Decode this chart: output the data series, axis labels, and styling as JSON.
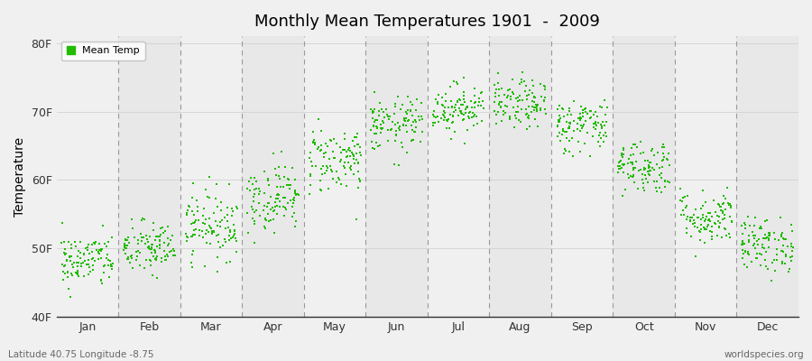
{
  "title": "Monthly Mean Temperatures 1901  -  2009",
  "ylabel": "Temperature",
  "lat_lon_label": "Latitude 40.75 Longitude -8.75",
  "watermark": "worldspecies.org",
  "legend_label": "Mean Temp",
  "marker_color": "#22bb00",
  "background_color": "#f0f0f0",
  "band_color_odd": "#e8e8e8",
  "band_color_even": "#f0f0f0",
  "ylim": [
    40,
    81
  ],
  "yticks": [
    40,
    50,
    60,
    70,
    80
  ],
  "ytick_labels": [
    "40F",
    "50F",
    "60F",
    "70F",
    "80F"
  ],
  "months": [
    "Jan",
    "Feb",
    "Mar",
    "Apr",
    "May",
    "Jun",
    "Jul",
    "Aug",
    "Sep",
    "Oct",
    "Nov",
    "Dec"
  ],
  "month_means_F": [
    48.2,
    50.0,
    53.5,
    57.5,
    63.0,
    68.0,
    70.5,
    71.0,
    68.0,
    62.0,
    54.5,
    50.5
  ],
  "month_stds_F": [
    2.0,
    2.0,
    2.5,
    2.5,
    2.5,
    2.0,
    1.8,
    1.8,
    2.0,
    2.0,
    2.0,
    2.0
  ],
  "n_years": 109,
  "seed": 42,
  "dline_color": "#999999",
  "spine_color": "#333333",
  "tick_label_color": "#333333"
}
